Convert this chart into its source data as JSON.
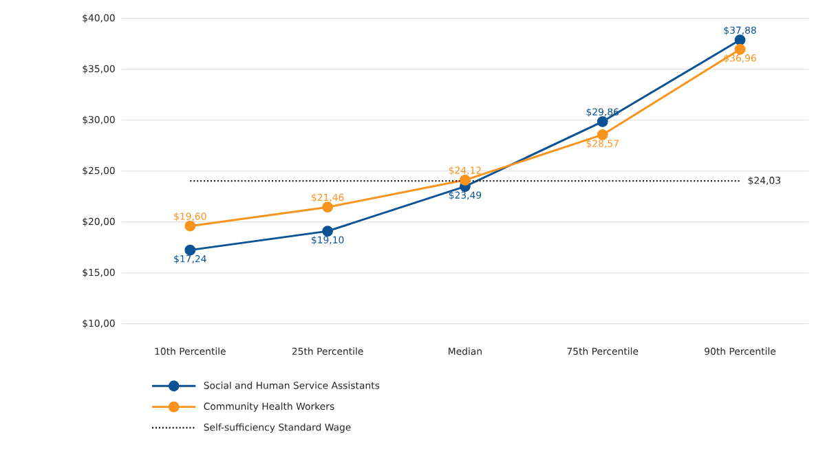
{
  "chart_data": {
    "type": "line",
    "categories": [
      "10th Percentile",
      "25th Percentile",
      "Median",
      "75th Percentile",
      "90th Percentile"
    ],
    "series": [
      {
        "name": "Social and Human Service Assistants",
        "color": "#0b5394",
        "values": [
          17.24,
          19.1,
          23.49,
          29.86,
          37.88
        ],
        "value_labels": [
          "$17,24",
          "$19,10",
          "$23,49",
          "$29,86",
          "$37,88"
        ],
        "marker": "circle",
        "line_style": "solid"
      },
      {
        "name": "Community Health Workers",
        "color": "#f7941d",
        "values": [
          19.6,
          21.46,
          24.12,
          28.57,
          36.96
        ],
        "value_labels": [
          "$19,60",
          "$21,46",
          "$24,12",
          "$28,57",
          "$36,96"
        ],
        "marker": "circle",
        "line_style": "solid"
      },
      {
        "name": "Self-sufficiency Standard Wage",
        "color": "#1a1a1a",
        "values": [
          24.03,
          24.03,
          24.03,
          24.03,
          24.03
        ],
        "value_labels": [
          null,
          null,
          null,
          null,
          "$24,03"
        ],
        "marker": "none",
        "line_style": "dotted"
      }
    ],
    "ylim": [
      10,
      40
    ],
    "yticks": [
      {
        "value": 10,
        "label": "$10,00"
      },
      {
        "value": 15,
        "label": "$15,00"
      },
      {
        "value": 20,
        "label": "$20,00"
      },
      {
        "value": 25,
        "label": "$25,00"
      },
      {
        "value": 30,
        "label": "$30,00"
      },
      {
        "value": 35,
        "label": "$35,00"
      },
      {
        "value": 40,
        "label": "$40,00"
      }
    ],
    "grid": "y",
    "legend": "bottom"
  }
}
